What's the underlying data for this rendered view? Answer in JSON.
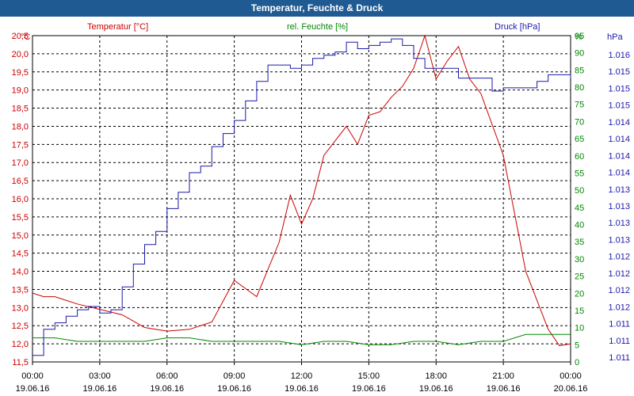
{
  "chart_data": {
    "type": "line",
    "title": "Temperatur, Feuchte & Druck",
    "axes": {
      "temperature": {
        "label": "Temperatur [°C]",
        "unit": "°C",
        "color": "#cc0000",
        "min": 11.5,
        "max": 20.5,
        "ticks": [
          "11,5",
          "12,0",
          "12,5",
          "13,0",
          "13,5",
          "14,0",
          "14,5",
          "15,0",
          "15,5",
          "16,0",
          "16,5",
          "17,0",
          "17,5",
          "18,0",
          "18,5",
          "19,0",
          "19,5",
          "20,0",
          "20,5"
        ]
      },
      "humidity": {
        "label": "rel. Feuchte [%]",
        "unit": "%",
        "color": "#008800",
        "min": 0,
        "max": 95,
        "ticks": [
          "0",
          "5",
          "10",
          "15",
          "20",
          "25",
          "30",
          "35",
          "40",
          "45",
          "50",
          "55",
          "60",
          "65",
          "70",
          "75",
          "80",
          "85",
          "90",
          "95"
        ]
      },
      "pressure": {
        "label": "Druck [hPa]",
        "unit": "hPa",
        "color": "#1a1aaa",
        "ticks": [
          "1.011",
          "1.011",
          "1.011",
          "1.012",
          "1.012",
          "1.012",
          "1.012",
          "1.013",
          "1.013",
          "1.013",
          "1.013",
          "1.014",
          "1.014",
          "1.014",
          "1.014",
          "1.015",
          "1.015",
          "1.015",
          "1.016"
        ]
      }
    },
    "x_ticks": [
      {
        "time": "00:00",
        "date": "19.06.16"
      },
      {
        "time": "03:00",
        "date": "19.06.16"
      },
      {
        "time": "06:00",
        "date": "19.06.16"
      },
      {
        "time": "09:00",
        "date": "19.06.16"
      },
      {
        "time": "12:00",
        "date": "19.06.16"
      },
      {
        "time": "15:00",
        "date": "19.06.16"
      },
      {
        "time": "18:00",
        "date": "19.06.16"
      },
      {
        "time": "21:00",
        "date": "19.06.16"
      },
      {
        "time": "00:00",
        "date": "20.06.16"
      }
    ],
    "x_range_hours": [
      0,
      24
    ],
    "series": [
      {
        "name": "Temperatur",
        "axis": "temperature",
        "color": "#cc0000",
        "hours": [
          0,
          0.5,
          1,
          2,
          3,
          4,
          5,
          6,
          7,
          8,
          9,
          10,
          11,
          11.5,
          12,
          12.5,
          13,
          13.5,
          14,
          14.5,
          15,
          15.5,
          16,
          16.5,
          17,
          17.5,
          18,
          18.5,
          19,
          19.5,
          20,
          21,
          22,
          23,
          23.5,
          24
        ],
        "values": [
          13.4,
          13.3,
          13.3,
          13.1,
          12.95,
          12.8,
          12.45,
          12.35,
          12.4,
          12.6,
          13.75,
          13.3,
          14.8,
          16.1,
          15.3,
          16.0,
          17.2,
          17.6,
          18.0,
          17.5,
          18.3,
          18.4,
          18.8,
          19.1,
          19.6,
          20.5,
          19.3,
          19.8,
          20.2,
          19.3,
          18.9,
          17.2,
          14.0,
          12.4,
          11.95,
          12.0
        ]
      },
      {
        "name": "rel. Feuchte",
        "axis": "humidity",
        "color": "#008800",
        "hours": [
          0,
          1,
          2,
          3,
          4,
          5,
          6,
          7,
          8,
          9,
          10,
          11,
          12,
          13,
          14,
          15,
          16,
          17,
          18,
          19,
          20,
          21,
          22,
          23,
          24
        ],
        "values": [
          7,
          7,
          6,
          6,
          6,
          6,
          7,
          7,
          6,
          6,
          6,
          6,
          5,
          6,
          6,
          5,
          5,
          6,
          6,
          5,
          6,
          6,
          8,
          8,
          8
        ]
      },
      {
        "name": "Druck",
        "axis": "pressure",
        "color": "#1a1aaa",
        "hours": [
          0,
          0.5,
          1,
          1.5,
          2,
          2.5,
          3,
          3.5,
          4,
          4.5,
          5,
          5.5,
          6,
          6.5,
          7,
          7.5,
          8,
          8.5,
          9,
          9.5,
          10,
          10.5,
          11,
          11.5,
          12,
          12.5,
          13,
          13.5,
          14,
          14.5,
          15,
          15.5,
          16,
          16.5,
          17,
          17.5,
          18,
          18.5,
          19,
          19.5,
          20,
          20.5,
          21,
          21.5,
          22,
          22.5,
          23,
          23.5,
          24
        ],
        "frac": [
          0.02,
          0.1,
          0.12,
          0.14,
          0.16,
          0.17,
          0.15,
          0.16,
          0.23,
          0.3,
          0.36,
          0.4,
          0.47,
          0.52,
          0.58,
          0.6,
          0.66,
          0.7,
          0.74,
          0.8,
          0.86,
          0.91,
          0.91,
          0.9,
          0.91,
          0.93,
          0.94,
          0.95,
          0.98,
          0.96,
          0.97,
          0.98,
          0.99,
          0.97,
          0.93,
          0.9,
          0.9,
          0.9,
          0.87,
          0.87,
          0.87,
          0.83,
          0.84,
          0.84,
          0.84,
          0.86,
          0.88,
          0.88,
          0.87
        ]
      }
    ]
  }
}
